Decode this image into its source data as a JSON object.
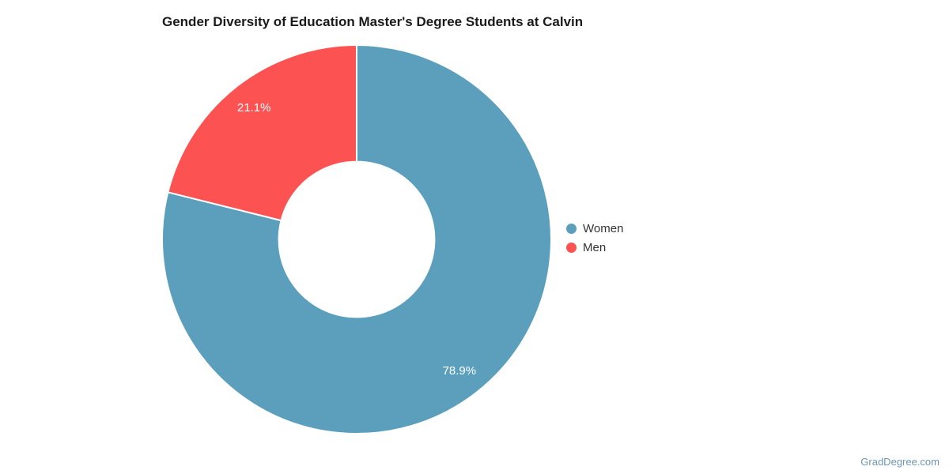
{
  "title": "Gender Diversity of Education Master's Degree Students at Calvin",
  "watermark": "GradDegree.com",
  "colors": {
    "background": "#FFFFFF",
    "title_text": "#1A1A1A",
    "legend_text": "#333333",
    "slice_label_text": "#FFFFFF",
    "slice_border": "#FFFFFF",
    "watermark_text": "#6E96B4",
    "women": "#5B9FBD",
    "men": "#FC5252"
  },
  "chart_data": {
    "type": "pie",
    "subtype": "donut",
    "title": "Gender Diversity of Education Master's Degree Students at Calvin",
    "start_angle_deg": 0,
    "direction": "clockwise",
    "inner_radius_ratio": 0.4,
    "legend_position": "right",
    "slices": [
      {
        "name": "Women",
        "value": 78.9,
        "label": "78.9%",
        "color": "#5B9FBD"
      },
      {
        "name": "Men",
        "value": 21.1,
        "label": "21.1%",
        "color": "#FC5252"
      }
    ]
  },
  "legend": {
    "items": [
      {
        "label": "Women",
        "color": "#5B9FBD"
      },
      {
        "label": "Men",
        "color": "#FC5252"
      }
    ]
  }
}
